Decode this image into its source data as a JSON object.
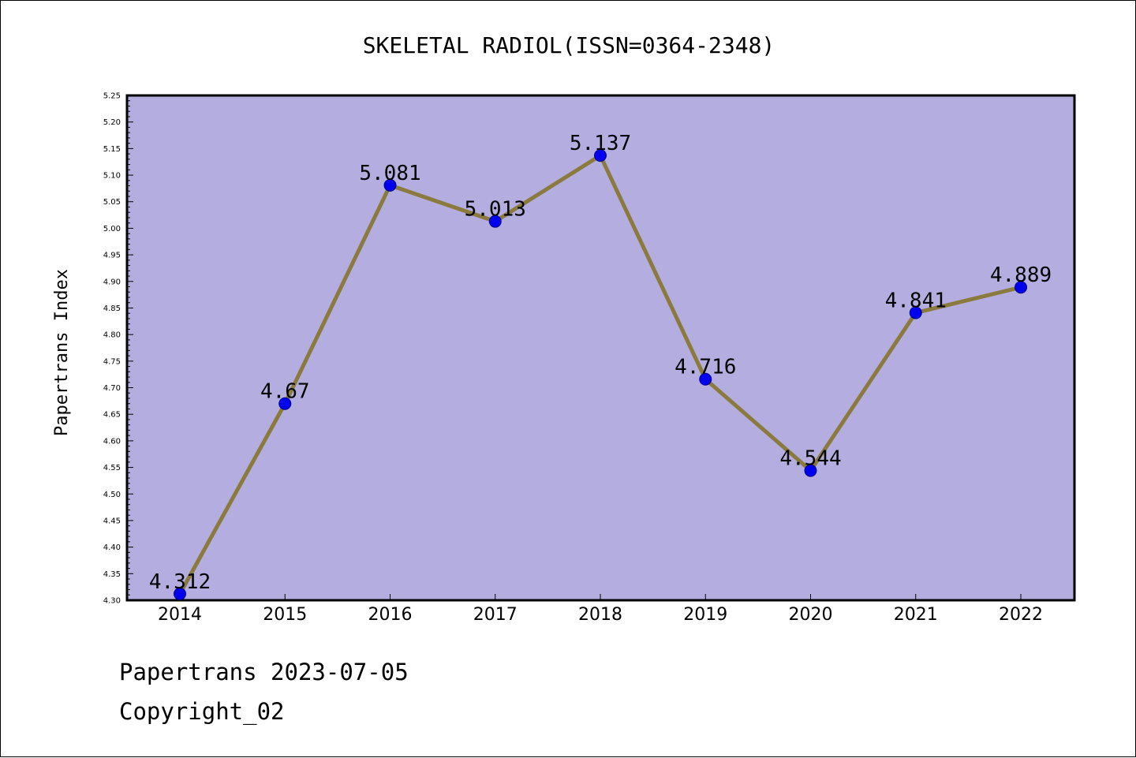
{
  "chart_data": {
    "type": "line",
    "title": "SKELETAL RADIOL(ISSN=0364-2348)",
    "xlabel": "",
    "ylabel": "Papertrans Index",
    "x": [
      "2014",
      "2015",
      "2016",
      "2017",
      "2018",
      "2019",
      "2020",
      "2021",
      "2022"
    ],
    "series": [
      {
        "values": [
          4.312,
          4.67,
          5.081,
          5.013,
          5.137,
          4.716,
          4.544,
          4.841,
          4.889
        ],
        "value_labels": [
          "4.312",
          "4.67",
          "5.081",
          "5.013",
          "5.137",
          "4.716",
          "4.544",
          "4.841",
          "4.889"
        ]
      }
    ],
    "ylim": [
      4.3,
      5.25
    ],
    "yticks": [
      "4.30",
      "4.35",
      "4.40",
      "4.45",
      "4.50",
      "4.55",
      "4.60",
      "4.65",
      "4.70",
      "4.75",
      "4.80",
      "4.85",
      "4.90",
      "4.95",
      "5.00",
      "5.05",
      "5.10",
      "5.15",
      "5.20",
      "5.25"
    ],
    "grid": false,
    "legend": "none",
    "colors": {
      "plot_background": "#b4aee0",
      "line": "#8b7a3e",
      "marker": "#0000ee",
      "axis": "#000000"
    }
  },
  "footer": {
    "line1": "Papertrans 2023-07-05",
    "line2": "Copyright_02"
  }
}
